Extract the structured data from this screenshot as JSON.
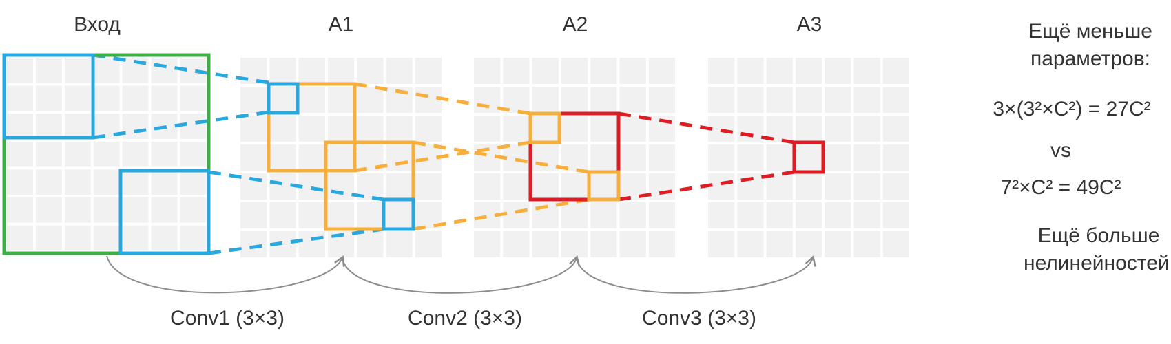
{
  "panels": [
    {
      "title": "Вход"
    },
    {
      "title": "A1"
    },
    {
      "title": "A2"
    },
    {
      "title": "A3"
    }
  ],
  "convs": [
    {
      "label": "Conv1 (3×3)"
    },
    {
      "label": "Conv2 (3×3)"
    },
    {
      "label": "Conv3 (3×3)"
    }
  ],
  "notes": {
    "fewer_params_line1": "Ещё меньше",
    "fewer_params_line2": "параметров:",
    "formula_stacked": "3×(3²×C²) = 27C²",
    "vs": "vs",
    "formula_single": "7²×C² = 49C²",
    "more_nonlin_line1": "Ещё больше",
    "more_nonlin_line2": "нелинейностей!"
  },
  "grid": {
    "rows": 7,
    "cols": 7
  },
  "colors": {
    "input_frame": "#3fae49",
    "conv1": "#29a8e0",
    "conv2": "#f7ae3b",
    "conv3": "#de1c24",
    "cell": "#f1f1f1",
    "arrow": "#8c8c8c",
    "text": "#333333"
  }
}
